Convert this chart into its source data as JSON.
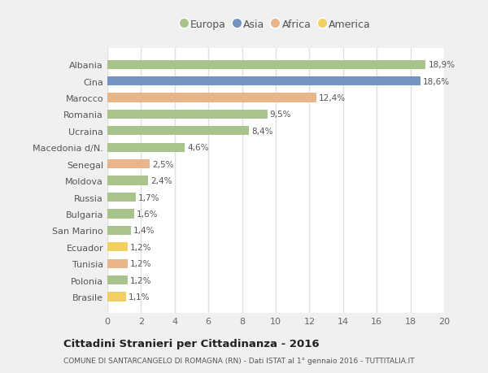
{
  "countries": [
    "Albania",
    "Cina",
    "Marocco",
    "Romania",
    "Ucraina",
    "Macedonia d/N.",
    "Senegal",
    "Moldova",
    "Russia",
    "Bulgaria",
    "San Marino",
    "Ecuador",
    "Tunisia",
    "Polonia",
    "Brasile"
  ],
  "values": [
    18.9,
    18.6,
    12.4,
    9.5,
    8.4,
    4.6,
    2.5,
    2.4,
    1.7,
    1.6,
    1.4,
    1.2,
    1.2,
    1.2,
    1.1
  ],
  "labels": [
    "18,9%",
    "18,6%",
    "12,4%",
    "9,5%",
    "8,4%",
    "4,6%",
    "2,5%",
    "2,4%",
    "1,7%",
    "1,6%",
    "1,4%",
    "1,2%",
    "1,2%",
    "1,2%",
    "1,1%"
  ],
  "continents": [
    "Europa",
    "Asia",
    "Africa",
    "Europa",
    "Europa",
    "Europa",
    "Africa",
    "Europa",
    "Europa",
    "Europa",
    "Europa",
    "America",
    "Africa",
    "Europa",
    "America"
  ],
  "colors": {
    "Europa": "#a8c48a",
    "Asia": "#7393c0",
    "Africa": "#e8b48a",
    "America": "#f0d060"
  },
  "legend_order": [
    "Europa",
    "Asia",
    "Africa",
    "America"
  ],
  "outer_bg_color": "#f0f0f0",
  "plot_bg_color": "#ffffff",
  "grid_color": "#e0e0e0",
  "title": "Cittadini Stranieri per Cittadinanza - 2016",
  "subtitle": "COMUNE DI SANTARCANGELO DI ROMAGNA (RN) - Dati ISTAT al 1° gennaio 2016 - TUTTITALIA.IT",
  "xlim": [
    0,
    20
  ],
  "xticks": [
    0,
    2,
    4,
    6,
    8,
    10,
    12,
    14,
    16,
    18,
    20
  ]
}
